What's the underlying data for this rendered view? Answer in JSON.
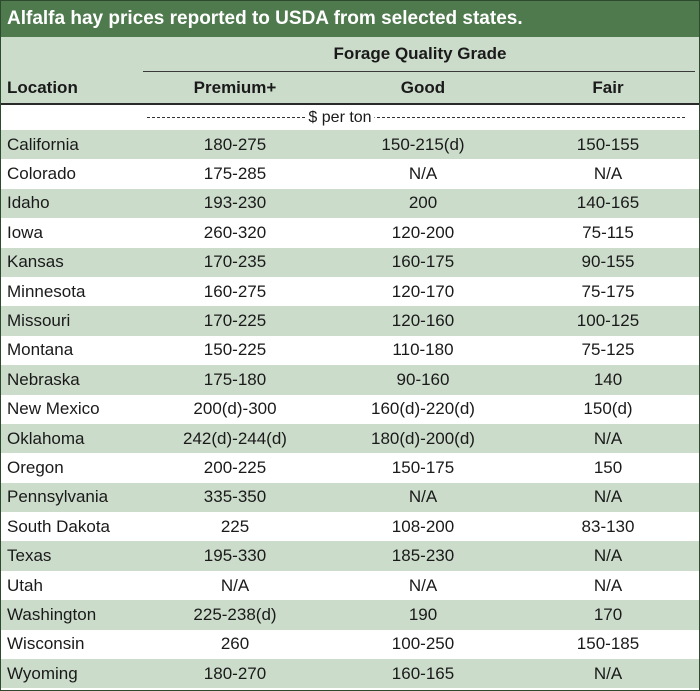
{
  "title": "Alfalfa hay prices reported to USDA from selected states.",
  "header": {
    "group_label": "Forage Quality Grade",
    "location_label": "Location",
    "columns": [
      "Premium+",
      "Good",
      "Fair"
    ]
  },
  "units_label": "$ per ton",
  "rows": [
    {
      "location": "California",
      "premium": "180-275",
      "good": "150-215(d)",
      "fair": "150-155"
    },
    {
      "location": "Colorado",
      "premium": "175-285",
      "good": "N/A",
      "fair": "N/A"
    },
    {
      "location": "Idaho",
      "premium": "193-230",
      "good": "200",
      "fair": "140-165"
    },
    {
      "location": "Iowa",
      "premium": "260-320",
      "good": "120-200",
      "fair": "75-115"
    },
    {
      "location": "Kansas",
      "premium": "170-235",
      "good": "160-175",
      "fair": "90-155"
    },
    {
      "location": "Minnesota",
      "premium": "160-275",
      "good": "120-170",
      "fair": "75-175"
    },
    {
      "location": "Missouri",
      "premium": "170-225",
      "good": "120-160",
      "fair": "100-125"
    },
    {
      "location": "Montana",
      "premium": "150-225",
      "good": "110-180",
      "fair": "75-125"
    },
    {
      "location": "Nebraska",
      "premium": "175-180",
      "good": "90-160",
      "fair": "140"
    },
    {
      "location": "New Mexico",
      "premium": "200(d)-300",
      "good": "160(d)-220(d)",
      "fair": "150(d)"
    },
    {
      "location": "Oklahoma",
      "premium": "242(d)-244(d)",
      "good": "180(d)-200(d)",
      "fair": "N/A"
    },
    {
      "location": "Oregon",
      "premium": "200-225",
      "good": "150-175",
      "fair": "150"
    },
    {
      "location": "Pennsylvania",
      "premium": "335-350",
      "good": "N/A",
      "fair": "N/A"
    },
    {
      "location": "South Dakota",
      "premium": "225",
      "good": "108-200",
      "fair": "83-130"
    },
    {
      "location": "Texas",
      "premium": "195-330",
      "good": "185-230",
      "fair": "N/A"
    },
    {
      "location": "Utah",
      "premium": "N/A",
      "good": "N/A",
      "fair": "N/A"
    },
    {
      "location": "Washington",
      "premium": "225-238(d)",
      "good": "190",
      "fair": "170"
    },
    {
      "location": "Wisconsin",
      "premium": "260",
      "good": "100-250",
      "fair": "150-185"
    },
    {
      "location": "Wyoming",
      "premium": "180-270",
      "good": "160-165",
      "fair": "N/A"
    }
  ],
  "colors": {
    "title_bg": "#4f7a4e",
    "band": "#ccdccb",
    "border": "#2e4a2e"
  }
}
